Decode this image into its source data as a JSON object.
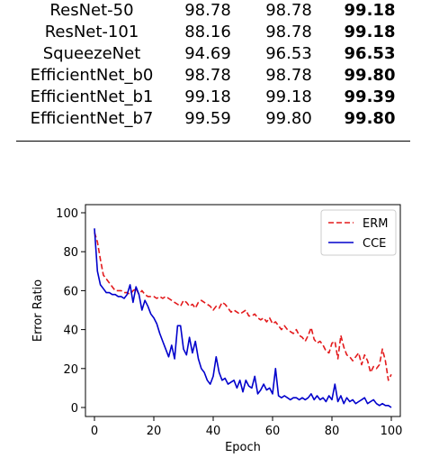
{
  "table": {
    "rows": [
      {
        "model": "ResNet-50",
        "c1": "98.78",
        "c2": "98.78",
        "c3": "99.18"
      },
      {
        "model": "ResNet-101",
        "c1": "88.16",
        "c2": "98.78",
        "c3": "99.18"
      },
      {
        "model": "SqueezeNet",
        "c1": "94.69",
        "c2": "96.53",
        "c3": "96.53"
      },
      {
        "model": "EfficientNet_b0",
        "c1": "98.78",
        "c2": "98.78",
        "c3": "99.80"
      },
      {
        "model": "EfficientNet_b1",
        "c1": "99.18",
        "c2": "99.18",
        "c3": "99.39"
      },
      {
        "model": "EfficientNet_b7",
        "c1": "99.59",
        "c2": "99.80",
        "c3": "99.80"
      }
    ]
  },
  "chart_data": {
    "type": "line",
    "title": "",
    "xlabel": "Epoch",
    "ylabel": "Error Ratio",
    "xlim": [
      0,
      100
    ],
    "ylim": [
      0,
      100
    ],
    "xticks": [
      "0",
      "20",
      "40",
      "60",
      "80",
      "100"
    ],
    "yticks": [
      "0",
      "20",
      "40",
      "60",
      "80",
      "100"
    ],
    "legend_position": "top-right",
    "series": [
      {
        "name": "ERM",
        "color": "#e31a1c",
        "style": "dashed",
        "points": [
          [
            0,
            90
          ],
          [
            1,
            85
          ],
          [
            2,
            76
          ],
          [
            3,
            68
          ],
          [
            4,
            66
          ],
          [
            5,
            64
          ],
          [
            6,
            62
          ],
          [
            7,
            60
          ],
          [
            8,
            60
          ],
          [
            9,
            60
          ],
          [
            10,
            59
          ],
          [
            11,
            59
          ],
          [
            12,
            58
          ],
          [
            13,
            60
          ],
          [
            14,
            61
          ],
          [
            15,
            58
          ],
          [
            16,
            60
          ],
          [
            17,
            58
          ],
          [
            18,
            57
          ],
          [
            19,
            57
          ],
          [
            20,
            57
          ],
          [
            21,
            56
          ],
          [
            22,
            57
          ],
          [
            23,
            56
          ],
          [
            24,
            57
          ],
          [
            25,
            56
          ],
          [
            26,
            55
          ],
          [
            27,
            54
          ],
          [
            28,
            53
          ],
          [
            29,
            52
          ],
          [
            30,
            55
          ],
          [
            31,
            54
          ],
          [
            32,
            52
          ],
          [
            33,
            53
          ],
          [
            34,
            51
          ],
          [
            35,
            54
          ],
          [
            36,
            55
          ],
          [
            37,
            54
          ],
          [
            38,
            53
          ],
          [
            39,
            52
          ],
          [
            40,
            50
          ],
          [
            41,
            52
          ],
          [
            42,
            51
          ],
          [
            43,
            54
          ],
          [
            44,
            53
          ],
          [
            45,
            51
          ],
          [
            46,
            49
          ],
          [
            47,
            50
          ],
          [
            48,
            49
          ],
          [
            49,
            48
          ],
          [
            50,
            49
          ],
          [
            51,
            50
          ],
          [
            52,
            47
          ],
          [
            53,
            47
          ],
          [
            54,
            48
          ],
          [
            55,
            46
          ],
          [
            56,
            45
          ],
          [
            57,
            46
          ],
          [
            58,
            44
          ],
          [
            59,
            46
          ],
          [
            60,
            43
          ],
          [
            61,
            44
          ],
          [
            62,
            42
          ],
          [
            63,
            40
          ],
          [
            64,
            42
          ],
          [
            65,
            40
          ],
          [
            66,
            39
          ],
          [
            67,
            38
          ],
          [
            68,
            40
          ],
          [
            69,
            37
          ],
          [
            70,
            36
          ],
          [
            71,
            34
          ],
          [
            72,
            37
          ],
          [
            73,
            41
          ],
          [
            74,
            35
          ],
          [
            75,
            33
          ],
          [
            76,
            34
          ],
          [
            77,
            32
          ],
          [
            78,
            29
          ],
          [
            79,
            28
          ],
          [
            80,
            33
          ],
          [
            81,
            34
          ],
          [
            82,
            25
          ],
          [
            83,
            37
          ],
          [
            84,
            31
          ],
          [
            85,
            27
          ],
          [
            86,
            26
          ],
          [
            87,
            24
          ],
          [
            88,
            26
          ],
          [
            89,
            28
          ],
          [
            90,
            22
          ],
          [
            91,
            27
          ],
          [
            92,
            24
          ],
          [
            93,
            18
          ],
          [
            94,
            21
          ],
          [
            95,
            20
          ],
          [
            96,
            22
          ],
          [
            97,
            30
          ],
          [
            98,
            24
          ],
          [
            99,
            14
          ],
          [
            100,
            17
          ]
        ]
      },
      {
        "name": "CCE",
        "color": "#0000cc",
        "style": "solid",
        "points": [
          [
            0,
            92
          ],
          [
            1,
            70
          ],
          [
            2,
            63
          ],
          [
            3,
            61
          ],
          [
            4,
            59
          ],
          [
            5,
            59
          ],
          [
            6,
            58
          ],
          [
            7,
            58
          ],
          [
            8,
            57
          ],
          [
            9,
            57
          ],
          [
            10,
            56
          ],
          [
            11,
            58
          ],
          [
            12,
            63
          ],
          [
            13,
            54
          ],
          [
            14,
            62
          ],
          [
            15,
            58
          ],
          [
            16,
            50
          ],
          [
            17,
            55
          ],
          [
            18,
            52
          ],
          [
            19,
            48
          ],
          [
            20,
            46
          ],
          [
            21,
            43
          ],
          [
            22,
            38
          ],
          [
            23,
            34
          ],
          [
            24,
            30
          ],
          [
            25,
            26
          ],
          [
            26,
            32
          ],
          [
            27,
            25
          ],
          [
            28,
            42
          ],
          [
            29,
            42
          ],
          [
            30,
            30
          ],
          [
            31,
            27
          ],
          [
            32,
            36
          ],
          [
            33,
            28
          ],
          [
            34,
            34
          ],
          [
            35,
            25
          ],
          [
            36,
            20
          ],
          [
            37,
            18
          ],
          [
            38,
            14
          ],
          [
            39,
            12
          ],
          [
            40,
            16
          ],
          [
            41,
            26
          ],
          [
            42,
            18
          ],
          [
            43,
            14
          ],
          [
            44,
            15
          ],
          [
            45,
            12
          ],
          [
            46,
            13
          ],
          [
            47,
            14
          ],
          [
            48,
            10
          ],
          [
            49,
            14
          ],
          [
            50,
            8
          ],
          [
            51,
            14
          ],
          [
            52,
            11
          ],
          [
            53,
            10
          ],
          [
            54,
            16
          ],
          [
            55,
            7
          ],
          [
            56,
            9
          ],
          [
            57,
            12
          ],
          [
            58,
            9
          ],
          [
            59,
            10
          ],
          [
            60,
            7
          ],
          [
            61,
            20
          ],
          [
            62,
            6
          ],
          [
            63,
            5
          ],
          [
            64,
            6
          ],
          [
            65,
            5
          ],
          [
            66,
            4
          ],
          [
            67,
            5
          ],
          [
            68,
            5
          ],
          [
            69,
            4
          ],
          [
            70,
            5
          ],
          [
            71,
            4
          ],
          [
            72,
            5
          ],
          [
            73,
            7
          ],
          [
            74,
            4
          ],
          [
            75,
            6
          ],
          [
            76,
            4
          ],
          [
            77,
            5
          ],
          [
            78,
            3
          ],
          [
            79,
            6
          ],
          [
            80,
            4
          ],
          [
            81,
            12
          ],
          [
            82,
            3
          ],
          [
            83,
            6
          ],
          [
            84,
            2
          ],
          [
            85,
            5
          ],
          [
            86,
            3
          ],
          [
            87,
            4
          ],
          [
            88,
            2
          ],
          [
            89,
            3
          ],
          [
            90,
            4
          ],
          [
            91,
            5
          ],
          [
            92,
            2
          ],
          [
            93,
            3
          ],
          [
            94,
            4
          ],
          [
            95,
            2
          ],
          [
            96,
            1
          ],
          [
            97,
            2
          ],
          [
            98,
            1
          ],
          [
            99,
            1
          ],
          [
            100,
            0
          ]
        ]
      }
    ]
  }
}
